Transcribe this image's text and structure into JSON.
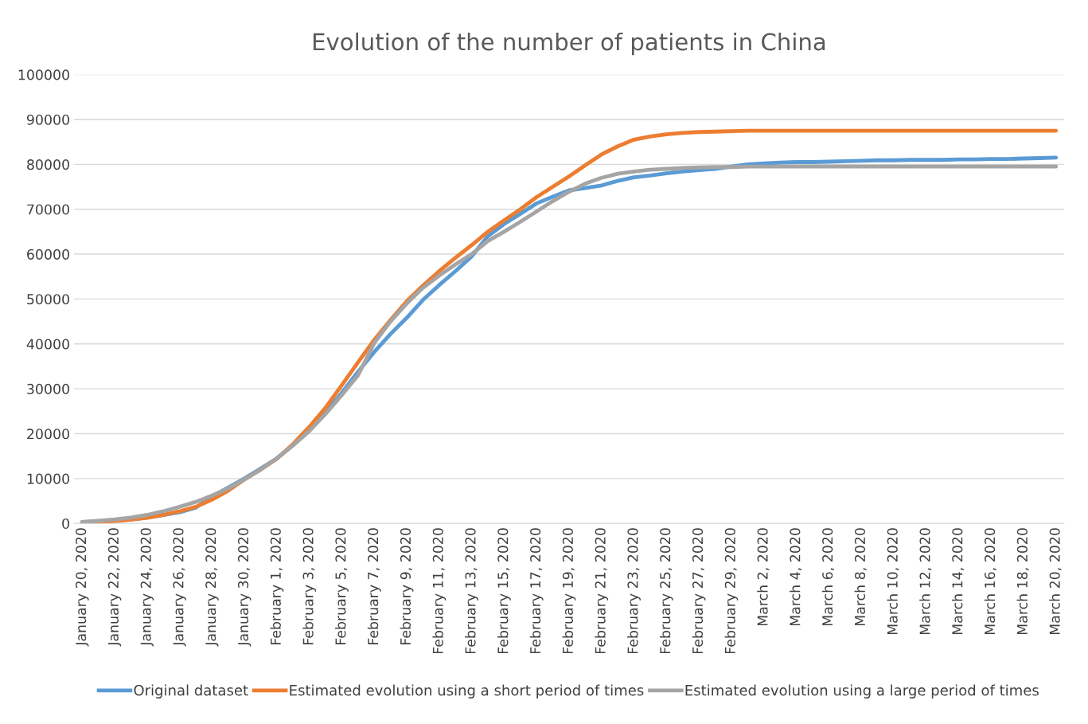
{
  "chart_data": {
    "type": "line",
    "title": "Evolution of the number of patients in China",
    "categories": [
      "January 20, 2020",
      null,
      "January 22, 2020",
      null,
      "January 24, 2020",
      null,
      "January 26, 2020",
      null,
      "January 28, 2020",
      null,
      "January 30, 2020",
      null,
      "February 1, 2020",
      null,
      "February 3, 2020",
      null,
      "February 5, 2020",
      null,
      "February 7, 2020",
      null,
      "February 9, 2020",
      null,
      "February 11, 2020",
      null,
      "February 13, 2020",
      null,
      "February 15, 2020",
      null,
      "February 17, 2020",
      null,
      "February 19, 2020",
      null,
      "February 21, 2020",
      null,
      "February 23, 2020",
      null,
      "February 25, 2020",
      null,
      "February 27, 2020",
      null,
      "February 29, 2020",
      null,
      "March 2, 2020",
      null,
      "March 4, 2020",
      null,
      "March 6, 2020",
      null,
      "March 8, 2020",
      null,
      "March 10, 2020",
      null,
      "March 12, 2020",
      null,
      "March 14, 2020",
      null,
      "March 16, 2020",
      null,
      "March 18, 2020",
      null,
      "March 20, 2020"
    ],
    "series": [
      {
        "name": "Original dataset",
        "color": "#5b9bd5",
        "values": [
          300,
          450,
          600,
          850,
          1300,
          1900,
          2500,
          3500,
          6000,
          8000,
          10000,
          12200,
          14500,
          17500,
          20700,
          24800,
          29100,
          33800,
          38200,
          42200,
          45800,
          49800,
          53100,
          56200,
          59500,
          64000,
          66700,
          69000,
          71300,
          72800,
          74200,
          74700,
          75300,
          76300,
          77100,
          77500,
          78000,
          78400,
          78700,
          79000,
          79500,
          80000,
          80200,
          80400,
          80500,
          80500,
          80600,
          80700,
          80800,
          80900,
          80900,
          81000,
          81000,
          81000,
          81100,
          81100,
          81200,
          81200,
          81300,
          81400,
          81500
        ]
      },
      {
        "name": "Estimated evolution using a short period of times",
        "color": "#ed7d31",
        "values": [
          100,
          300,
          550,
          850,
          1250,
          1900,
          2700,
          3700,
          5300,
          7300,
          9800,
          12000,
          14400,
          17700,
          21500,
          25800,
          30800,
          35900,
          40900,
          45300,
          49500,
          53000,
          56200,
          59200,
          62000,
          65000,
          67500,
          70000,
          72700,
          75000,
          77300,
          79800,
          82200,
          84000,
          85500,
          86200,
          86700,
          87000,
          87200,
          87300,
          87400,
          87500,
          87500,
          87500,
          87500,
          87500,
          87500,
          87500,
          87500,
          87500,
          87500,
          87500,
          87500,
          87500,
          87500,
          87500,
          87500,
          87500,
          87500,
          87500,
          87500
        ]
      },
      {
        "name": "Estimated evolution using a large period of times",
        "color": "#a5a5a5",
        "values": [
          300,
          600,
          900,
          1300,
          1900,
          2700,
          3700,
          4800,
          6200,
          7800,
          9800,
          12000,
          14500,
          17400,
          20600,
          24400,
          28600,
          33000,
          40200,
          45000,
          49000,
          52500,
          55200,
          57700,
          60000,
          62900,
          65000,
          67200,
          69500,
          71800,
          73900,
          75700,
          77000,
          77900,
          78400,
          78800,
          79000,
          79200,
          79300,
          79400,
          79400,
          79500,
          79500,
          79500,
          79500,
          79500,
          79500,
          79500,
          79500,
          79500,
          79500,
          79500,
          79500,
          79500,
          79500,
          79500,
          79500,
          79500,
          79500,
          79500,
          79500
        ]
      }
    ],
    "ylim": [
      0,
      100000
    ],
    "yticks": [
      0,
      10000,
      20000,
      30000,
      40000,
      50000,
      60000,
      70000,
      80000,
      90000,
      100000
    ],
    "grid": "y",
    "legend": "bottom",
    "marker": "none",
    "line_style": "solid"
  }
}
